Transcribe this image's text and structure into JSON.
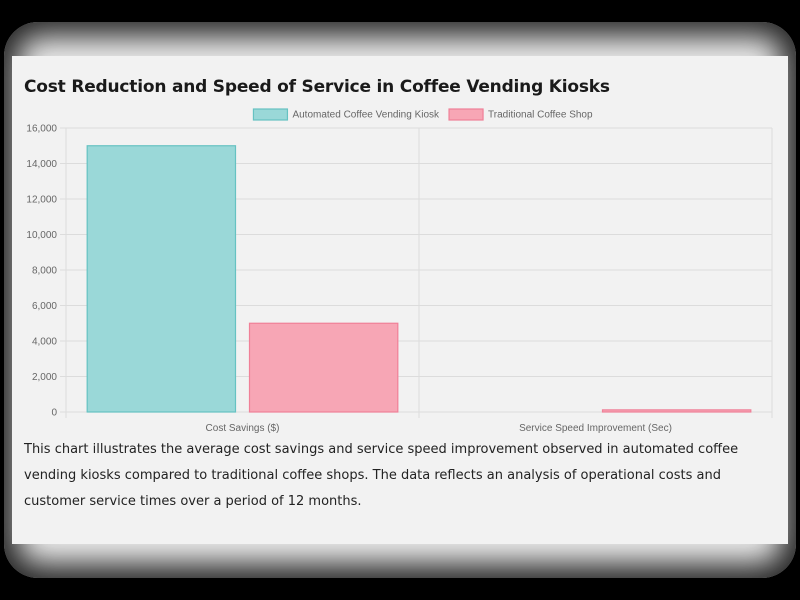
{
  "page": {
    "title": "Cost Reduction and Speed of Service in Coffee Vending Kiosks",
    "description": "This chart illustrates the average cost savings and service speed improvement observed in automated coffee vending kiosks compared to traditional coffee shops. The data reflects an analysis of operational costs and customer service times over a period of 12 months."
  },
  "chart_data": {
    "type": "bar",
    "title": "Cost Reduction and Speed of Service in Coffee Vending Kiosks",
    "categories": [
      "Cost Savings ($)",
      "Service Speed Improvement (Sec)"
    ],
    "series": [
      {
        "name": "Automated Coffee Vending Kiosk",
        "values": [
          15000,
          0
        ],
        "color": "#9ad8d8",
        "border": "#66c2c2"
      },
      {
        "name": "Traditional Coffee Shop",
        "values": [
          5000,
          120
        ],
        "color": "#f7a6b5",
        "border": "#f08098"
      }
    ],
    "ylim": [
      0,
      16000
    ],
    "yticks": [
      0,
      2000,
      4000,
      6000,
      8000,
      10000,
      12000,
      14000,
      16000
    ],
    "ytick_labels": [
      "0",
      "2,000",
      "4,000",
      "6,000",
      "8,000",
      "10,000",
      "12,000",
      "14,000",
      "16,000"
    ],
    "grid": true,
    "legend_position": "top-center",
    "xlabel": "",
    "ylabel": ""
  }
}
